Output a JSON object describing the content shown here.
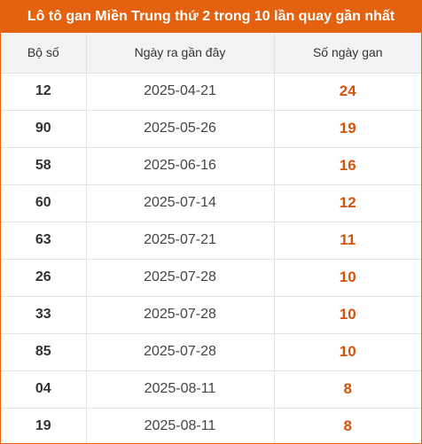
{
  "title": "Lô tô gan Miền Trung thứ 2 trong 10 lần quay gần nhất",
  "accent_color": "#e4610f",
  "gan_color": "#d5540b",
  "headers": {
    "number": "Bộ số",
    "last_date": "Ngày ra gần đây",
    "gan_days": "Số ngày gan"
  },
  "rows": [
    {
      "number": "12",
      "last_date": "2025-04-21",
      "gan_days": "24"
    },
    {
      "number": "90",
      "last_date": "2025-05-26",
      "gan_days": "19"
    },
    {
      "number": "58",
      "last_date": "2025-06-16",
      "gan_days": "16"
    },
    {
      "number": "60",
      "last_date": "2025-07-14",
      "gan_days": "12"
    },
    {
      "number": "63",
      "last_date": "2025-07-21",
      "gan_days": "11"
    },
    {
      "number": "26",
      "last_date": "2025-07-28",
      "gan_days": "10"
    },
    {
      "number": "33",
      "last_date": "2025-07-28",
      "gan_days": "10"
    },
    {
      "number": "85",
      "last_date": "2025-07-28",
      "gan_days": "10"
    },
    {
      "number": "04",
      "last_date": "2025-08-11",
      "gan_days": "8"
    },
    {
      "number": "19",
      "last_date": "2025-08-11",
      "gan_days": "8"
    }
  ]
}
